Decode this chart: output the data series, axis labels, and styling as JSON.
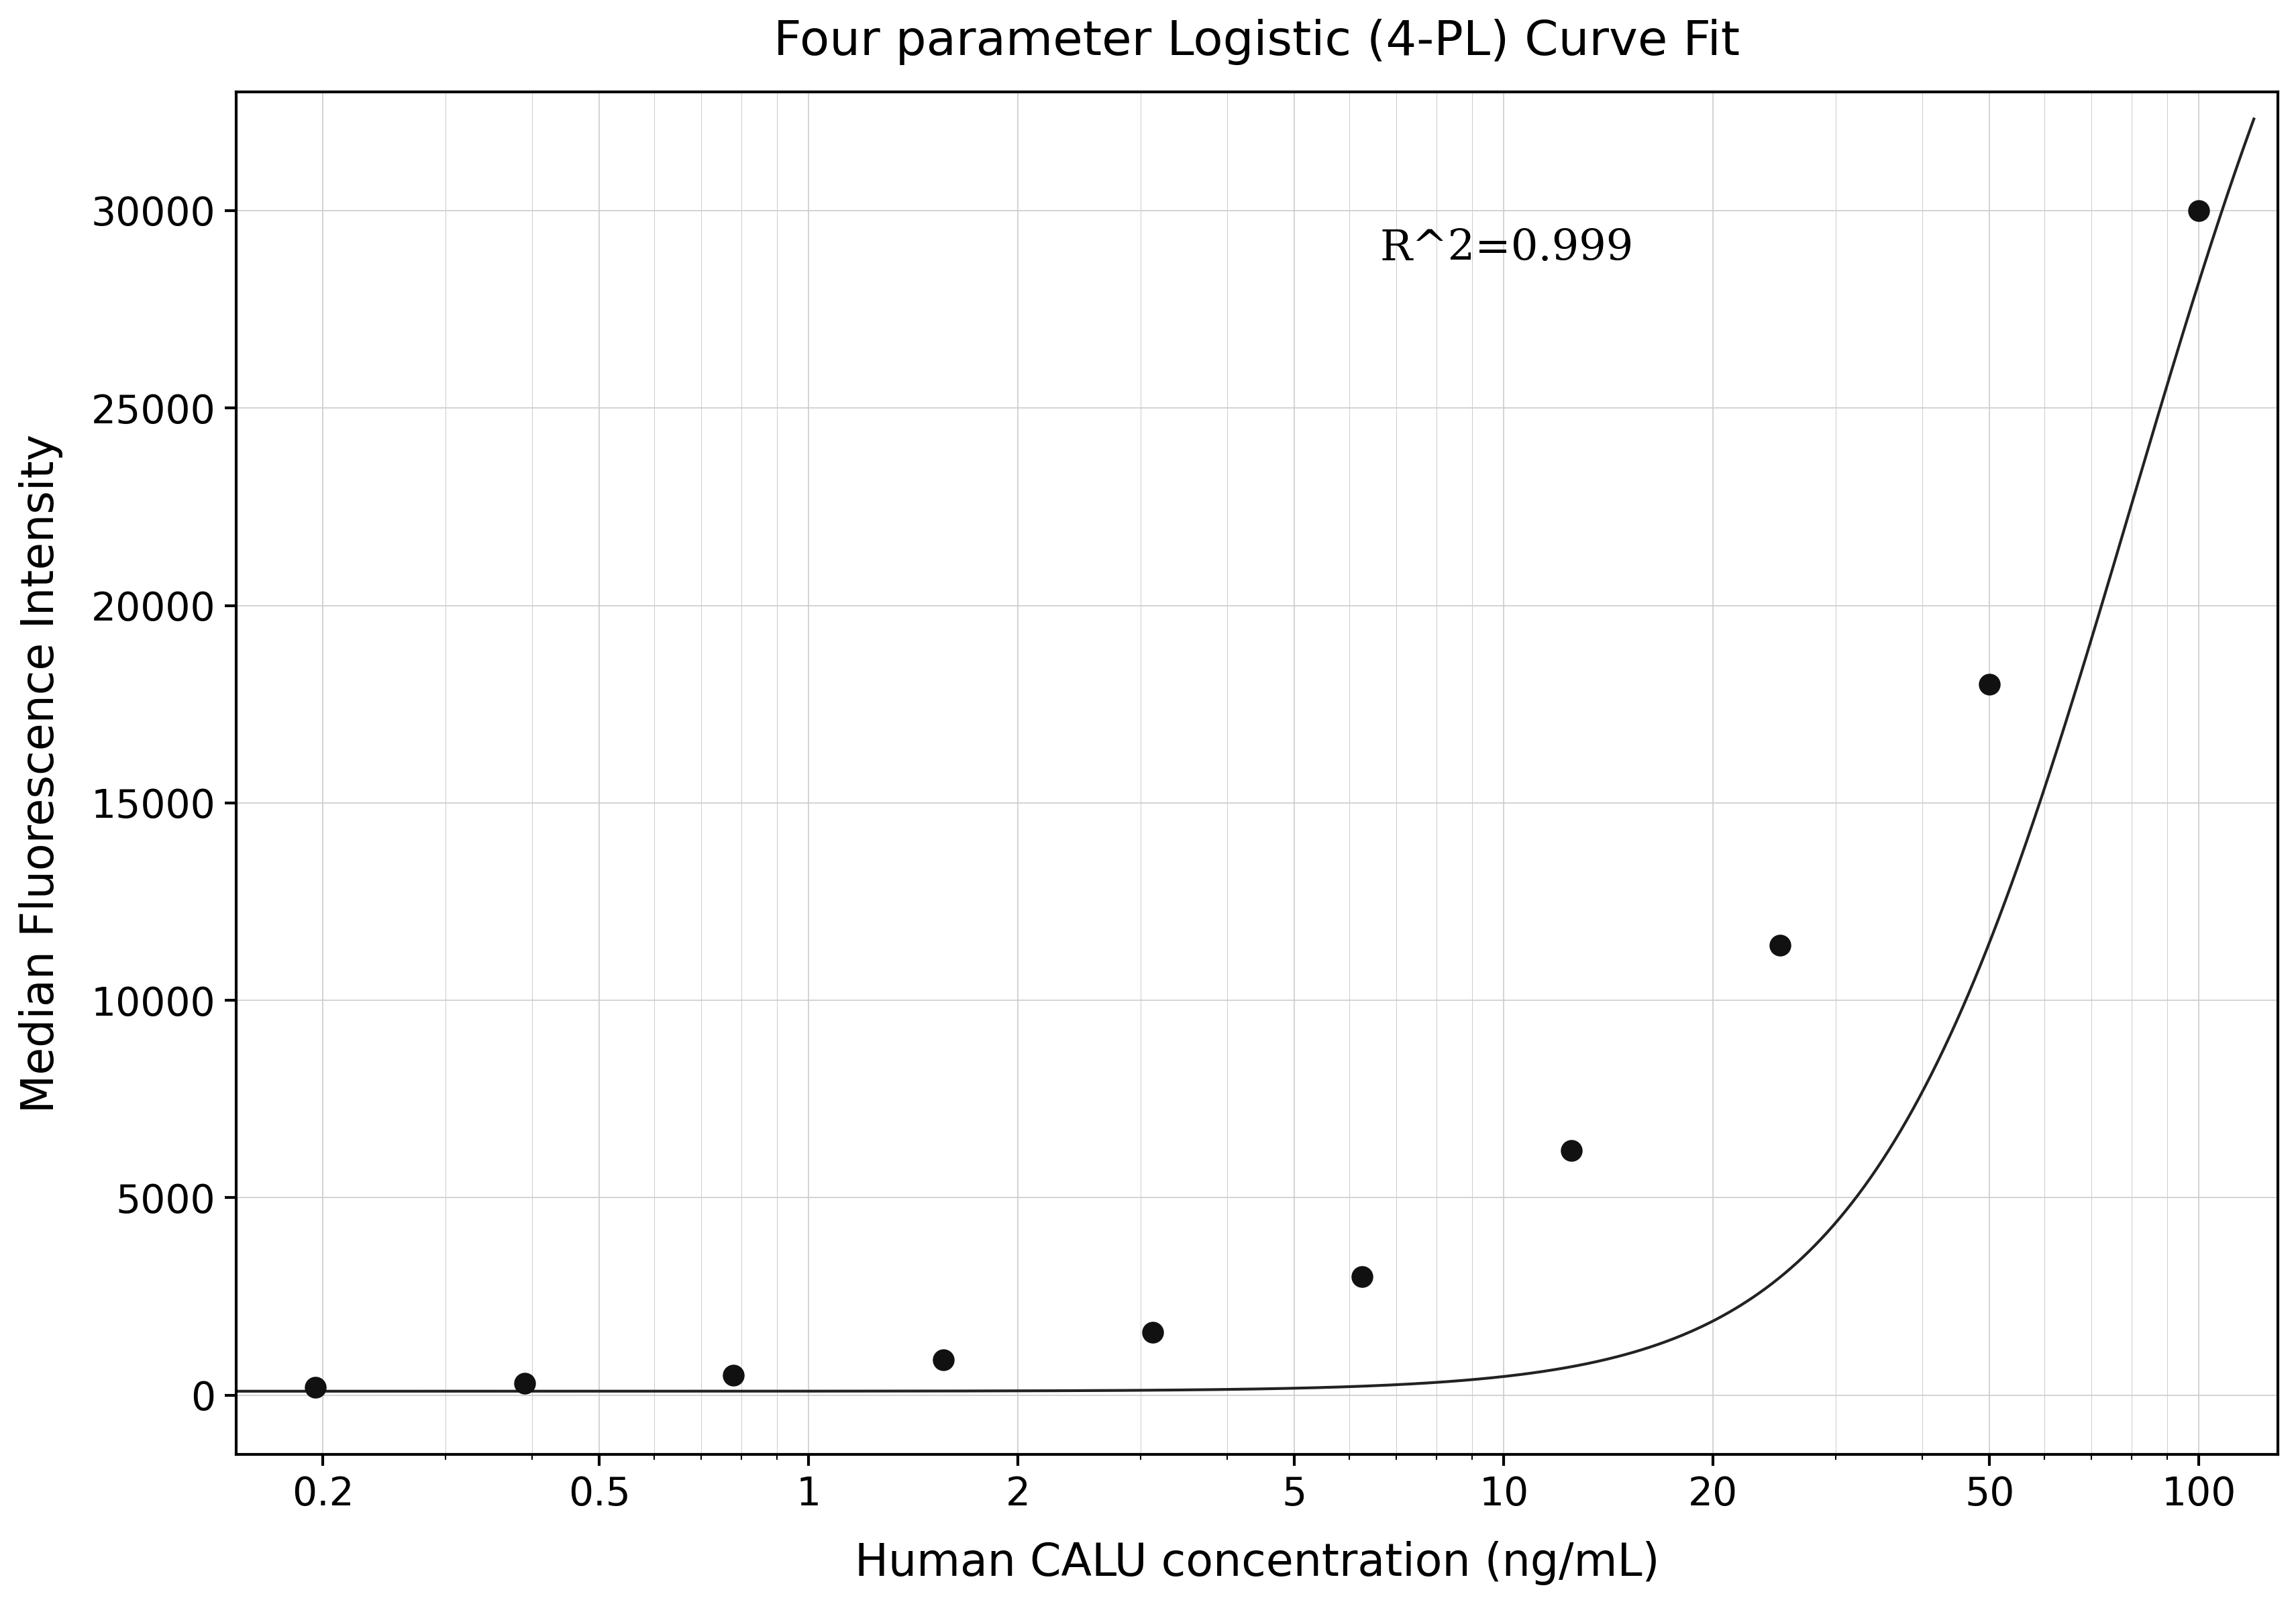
{
  "title": "Four parameter Logistic (4-PL) Curve Fit",
  "xlabel": "Human CALU concentration (ng/mL)",
  "ylabel": "Median Fluorescence Intensity",
  "r_squared_text": "R^2=0.999",
  "scatter_x": [
    0.195,
    0.39,
    0.78,
    1.563,
    3.125,
    6.25,
    12.5,
    25.0,
    50.0,
    100.0
  ],
  "scatter_y": [
    200,
    300,
    500,
    900,
    1600,
    3000,
    6200,
    11400,
    18000,
    30000
  ],
  "xlim_log": [
    0.15,
    130
  ],
  "ylim": [
    -1500,
    33000
  ],
  "yticks": [
    0,
    5000,
    10000,
    15000,
    20000,
    25000,
    30000
  ],
  "xtick_labels": [
    "0.2",
    "0.5",
    "1",
    "2",
    "5",
    "10",
    "20",
    "50",
    "100"
  ],
  "xtick_positions": [
    0.2,
    0.5,
    1,
    2,
    5,
    10,
    20,
    50,
    100
  ],
  "title_fontsize": 52,
  "label_fontsize": 48,
  "tick_fontsize": 42,
  "annotation_fontsize": 46,
  "dot_color": "#111111",
  "line_color": "#222222",
  "grid_color": "#cccccc",
  "background_color": "#ffffff",
  "dot_size": 500,
  "linewidth": 3.0
}
